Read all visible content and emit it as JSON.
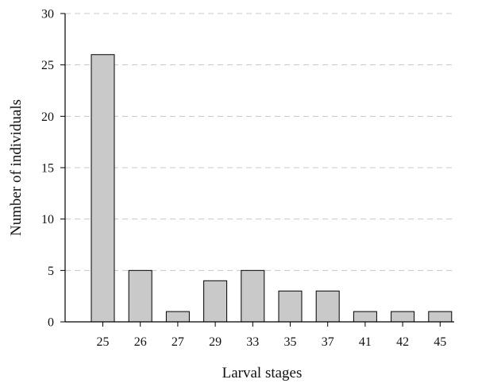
{
  "chart_data": {
    "type": "bar",
    "title": "",
    "xlabel": "Larval stages",
    "ylabel": "Number of individuals",
    "categories": [
      "25",
      "26",
      "27",
      "29",
      "33",
      "35",
      "37",
      "41",
      "42",
      "45"
    ],
    "values": [
      26,
      5,
      1,
      4,
      5,
      3,
      3,
      1,
      1,
      1
    ],
    "ylim": [
      0,
      30
    ],
    "yticks": [
      "0",
      "5",
      "10",
      "15",
      "20",
      "25",
      "30"
    ],
    "grid": "horizontal dashed",
    "bar_color": "#c9c9c9",
    "edge_color": "#000000",
    "grid_color": "#c8c8c8"
  }
}
